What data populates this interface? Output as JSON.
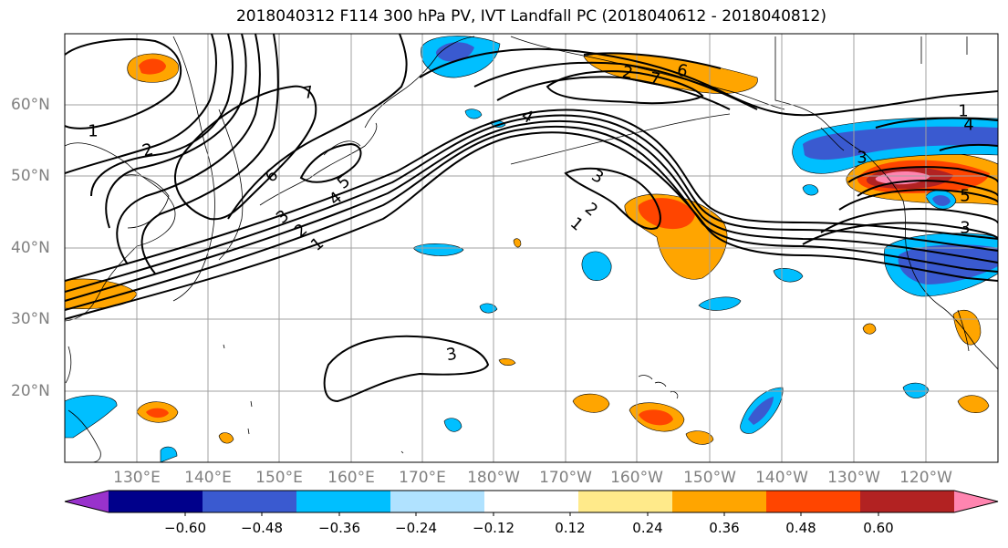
{
  "title": "2018040312 F114 300 hPa PV, IVT Landfall PC (2018040612 - 2018040812)",
  "lon_labels": [
    "130°E",
    "140°E",
    "150°E",
    "160°E",
    "170°E",
    "180°W",
    "170°W",
    "160°W",
    "150°W",
    "140°W",
    "130°W",
    "120°W"
  ],
  "lat_labels": [
    "60°N",
    "50°N",
    "40°N",
    "30°N",
    "20°N"
  ],
  "colorbar": {
    "ticks": [
      "−0.60",
      "−0.48",
      "−0.36",
      "−0.24",
      "−0.12",
      "0.12",
      "0.24",
      "0.36",
      "0.48",
      "0.60"
    ],
    "colors": [
      "#9932cc",
      "#00008b",
      "#3a5ad0",
      "#00bfff",
      "#b0e2ff",
      "#ffffff",
      "#ffea8a",
      "#ffa500",
      "#ff4500",
      "#b22222",
      "#ff85b0"
    ]
  },
  "contour_labels": [
    "1",
    "2",
    "3",
    "4",
    "5",
    "6",
    "7",
    "1",
    "2",
    "3",
    "4",
    "5",
    "6",
    "7",
    "2",
    "1",
    "3",
    "1",
    "4",
    "3",
    "2",
    "3"
  ]
}
